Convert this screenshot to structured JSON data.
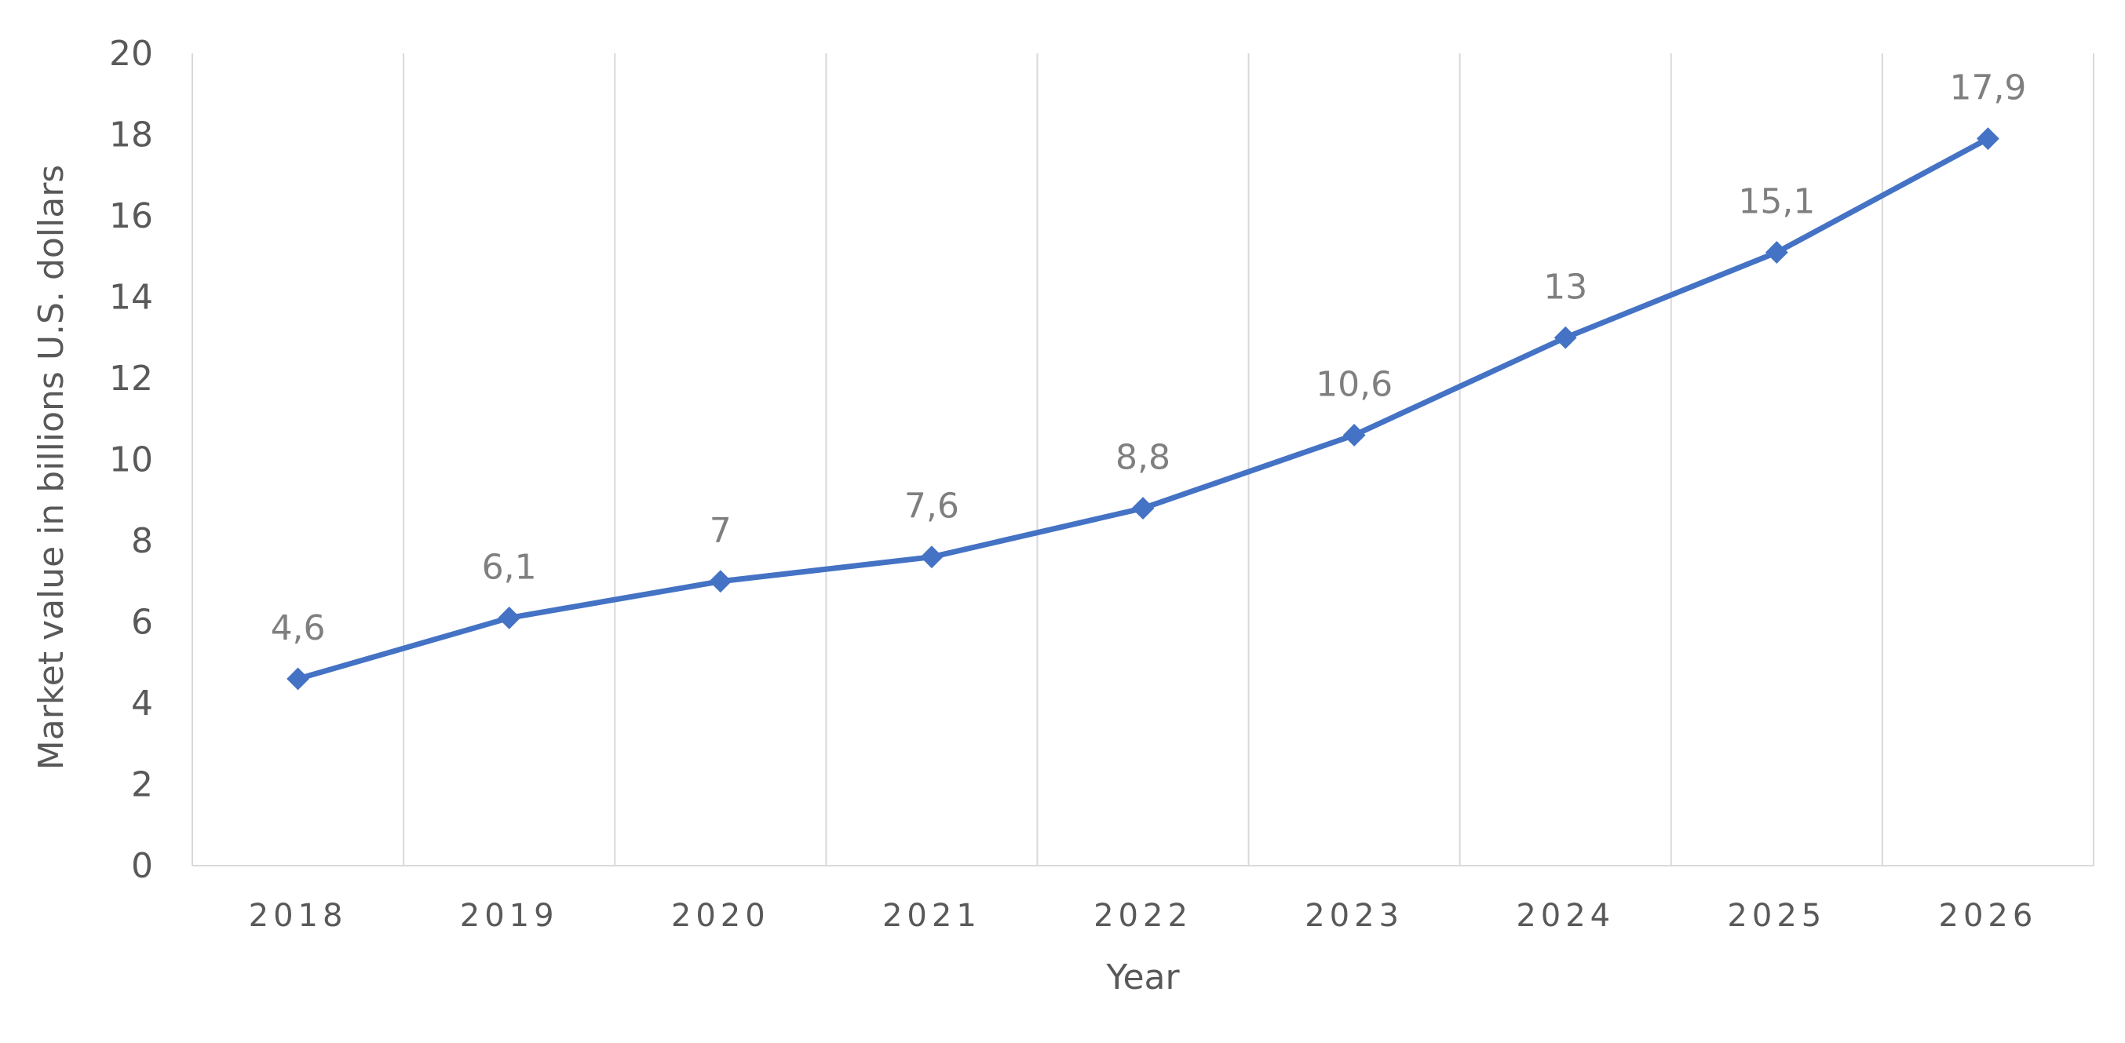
{
  "chart_data": {
    "type": "line",
    "title": "",
    "xlabel": "Year",
    "ylabel": "Market value in billions U.S. dollars",
    "categories": [
      "2018",
      "2019",
      "2020",
      "2021",
      "2022",
      "2023",
      "2024",
      "2025",
      "2026"
    ],
    "series": [
      {
        "values": [
          4.6,
          6.1,
          7,
          7.6,
          8.8,
          10.6,
          13,
          15.1,
          17.9
        ],
        "data_labels": [
          "4,6",
          "6,1",
          "7",
          "7,6",
          "8,8",
          "10,6",
          "13",
          "15,1",
          "17,9"
        ],
        "marker": "diamond"
      }
    ],
    "ylim": [
      0,
      20
    ],
    "yticks": [
      "0",
      "2",
      "4",
      "6",
      "8",
      "10",
      "12",
      "14",
      "16",
      "18",
      "20"
    ],
    "grid": "vertical",
    "legend": "none",
    "colors": {
      "series": "#4472c4",
      "grid": "#d9d9d9",
      "axis": "#d9d9d9",
      "tick_text": "#595959",
      "data_label_text": "#7f7f7f"
    }
  }
}
